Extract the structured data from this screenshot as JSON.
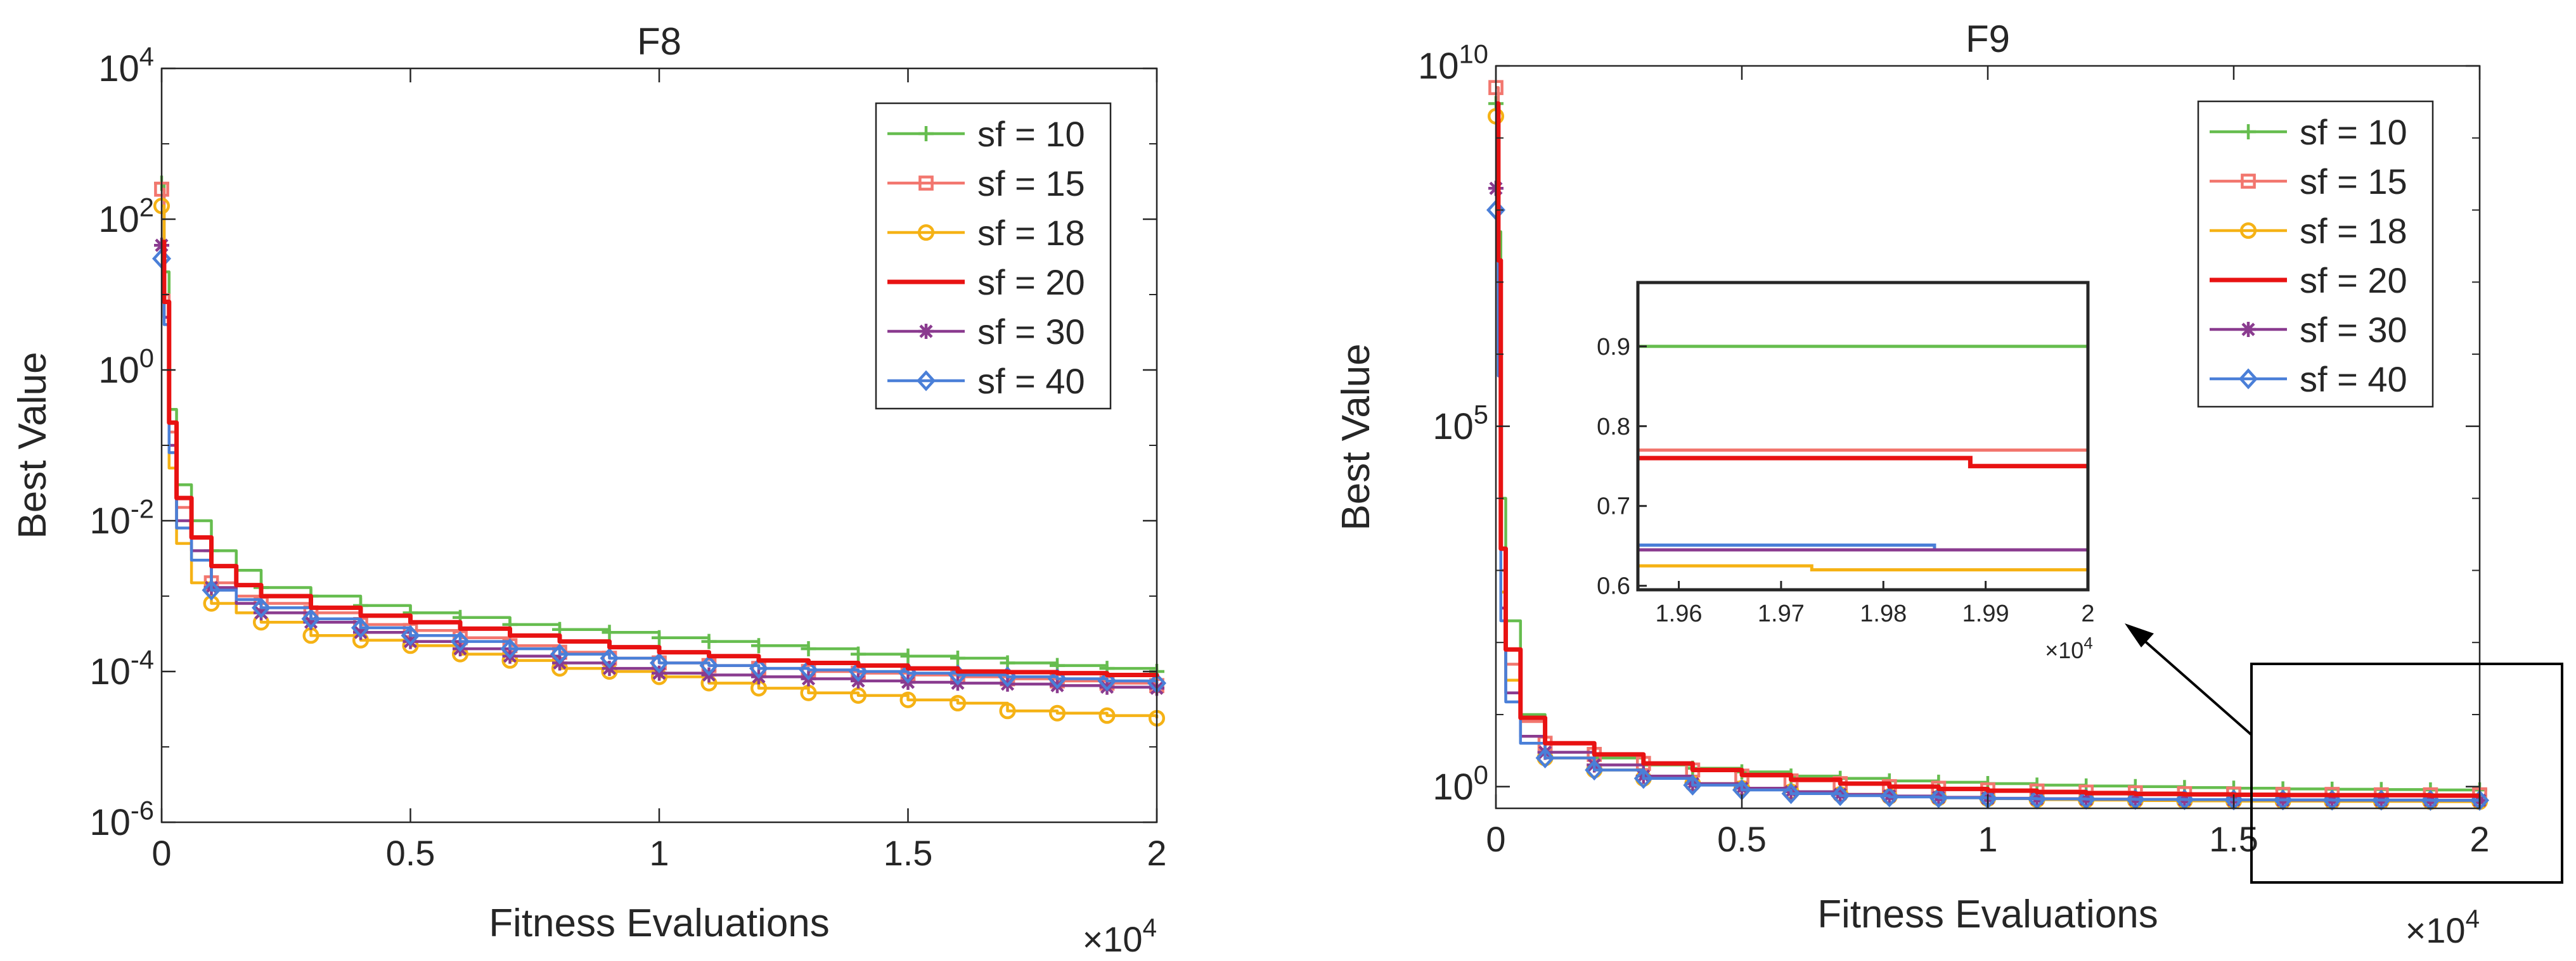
{
  "colors": {
    "sf10": "#66bd4f",
    "sf15": "#f2766e",
    "sf18": "#f5b215",
    "sf20": "#e81212",
    "sf30": "#8a3b8f",
    "sf40": "#4a7fd8",
    "axis": "#262626",
    "arrow": "#000000"
  },
  "chart_data": [
    {
      "id": "F8",
      "type": "line",
      "title": "F8",
      "xlabel": "Fitness Evaluations",
      "ylabel": "Best Value",
      "x_multiplier_label": "×10",
      "x_multiplier_exp": "4",
      "yscale": "log",
      "xlim": [
        0,
        20000
      ],
      "ylim": [
        1e-06,
        10000
      ],
      "xticks": [
        0,
        5000,
        10000,
        15000,
        20000
      ],
      "xtick_labels": [
        "0",
        "0.5",
        "1",
        "1.5",
        "2"
      ],
      "ytick_exps": [
        "-6",
        "-4",
        "-2",
        "0",
        "2",
        "4"
      ],
      "legend_position": "top-right",
      "series": [
        {
          "name": "sf = 10",
          "color_key": "sf10",
          "marker": "plus",
          "x": [
            0,
            50,
            150,
            300,
            600,
            1000,
            1500,
            2000,
            3000,
            4000,
            5000,
            6000,
            7000,
            8000,
            9000,
            10000,
            11000,
            12000,
            13000,
            14000,
            15000,
            16000,
            17000,
            18000,
            19000,
            20000
          ],
          "y": [
            300,
            20,
            0.3,
            0.03,
            0.01,
            0.004,
            0.0022,
            0.0013,
            0.001,
            0.00075,
            0.0006,
            0.00052,
            0.00042,
            0.00036,
            0.00033,
            0.00028,
            0.00025,
            0.00022,
            0.0002,
            0.00017,
            0.00016,
            0.00015,
            0.00013,
            0.00012,
            0.00011,
            0.0001
          ]
        },
        {
          "name": "sf = 15",
          "color_key": "sf15",
          "marker": "square",
          "x": [
            0,
            50,
            150,
            300,
            600,
            1000,
            1500,
            2000,
            3000,
            4000,
            5000,
            6000,
            7000,
            8000,
            9000,
            10000,
            11000,
            12000,
            13000,
            14000,
            15000,
            16000,
            17000,
            18000,
            19000,
            20000
          ],
          "y": [
            250,
            10,
            0.15,
            0.015,
            0.006,
            0.0015,
            0.001,
            0.0008,
            0.0006,
            0.00042,
            0.00035,
            0.00028,
            0.00022,
            0.00018,
            0.00015,
            0.00013,
            0.00012,
            0.00011,
            0.0001,
            9.5e-05,
            9e-05,
            8.5e-05,
            8e-05,
            7.5e-05,
            7e-05,
            6.5e-05
          ]
        },
        {
          "name": "sf = 18",
          "color_key": "sf18",
          "marker": "circle",
          "x": [
            0,
            50,
            150,
            300,
            600,
            1000,
            1500,
            2000,
            3000,
            4000,
            5000,
            6000,
            7000,
            8000,
            9000,
            10000,
            11000,
            12000,
            13000,
            14000,
            15000,
            16000,
            17000,
            18000,
            19000,
            20000
          ],
          "y": [
            150,
            5,
            0.05,
            0.005,
            0.0015,
            0.0008,
            0.0006,
            0.00045,
            0.0003,
            0.00026,
            0.00022,
            0.00017,
            0.00014,
            0.00011,
            0.0001,
            8.5e-05,
            7e-05,
            6e-05,
            5.2e-05,
            4.8e-05,
            4.2e-05,
            3.8e-05,
            3e-05,
            2.8e-05,
            2.6e-05,
            2.4e-05
          ]
        },
        {
          "name": "sf = 20",
          "color_key": "sf20",
          "marker": "none",
          "x": [
            0,
            50,
            150,
            300,
            600,
            1000,
            1500,
            2000,
            3000,
            4000,
            5000,
            6000,
            7000,
            8000,
            9000,
            10000,
            11000,
            12000,
            13000,
            14000,
            15000,
            16000,
            17000,
            18000,
            19000,
            20000
          ],
          "y": [
            50,
            8,
            0.2,
            0.02,
            0.006,
            0.0025,
            0.0014,
            0.001,
            0.0007,
            0.00055,
            0.00045,
            0.00037,
            0.0003,
            0.00025,
            0.00021,
            0.00018,
            0.00016,
            0.00014,
            0.00013,
            0.00012,
            0.00011,
            0.0001,
            9.8e-05,
            9.5e-05,
            9e-05,
            8.5e-05
          ]
        },
        {
          "name": "sf = 30",
          "color_key": "sf30",
          "marker": "asterisk",
          "x": [
            0,
            50,
            150,
            300,
            600,
            1000,
            1500,
            2000,
            3000,
            4000,
            5000,
            6000,
            7000,
            8000,
            9000,
            10000,
            11000,
            12000,
            13000,
            14000,
            15000,
            16000,
            17000,
            18000,
            19000,
            20000
          ],
          "y": [
            45,
            5,
            0.1,
            0.01,
            0.004,
            0.0013,
            0.0008,
            0.0006,
            0.00045,
            0.00033,
            0.00025,
            0.0002,
            0.00016,
            0.00013,
            0.00011,
            9.5e-05,
            9e-05,
            8.5e-05,
            8e-05,
            7.5e-05,
            7.2e-05,
            7e-05,
            6.8e-05,
            6.5e-05,
            6.2e-05,
            6e-05
          ]
        },
        {
          "name": "sf = 40",
          "color_key": "sf40",
          "marker": "diamond",
          "x": [
            0,
            50,
            150,
            300,
            600,
            1000,
            1500,
            2000,
            3000,
            4000,
            5000,
            6000,
            7000,
            8000,
            9000,
            10000,
            11000,
            12000,
            13000,
            14000,
            15000,
            16000,
            17000,
            18000,
            19000,
            20000
          ],
          "y": [
            30,
            4,
            0.08,
            0.008,
            0.003,
            0.0012,
            0.0009,
            0.0007,
            0.0005,
            0.00038,
            0.0003,
            0.00025,
            0.0002,
            0.00017,
            0.00015,
            0.00013,
            0.00012,
            0.00011,
            0.000105,
            0.0001,
            9.5e-05,
            9e-05,
            8.5e-05,
            8e-05,
            7.5e-05,
            7e-05
          ]
        }
      ]
    },
    {
      "id": "F9",
      "type": "line",
      "title": "F9",
      "xlabel": "Fitness Evaluations",
      "ylabel": "Best Value",
      "x_multiplier_label": "×10",
      "x_multiplier_exp": "4",
      "yscale": "log",
      "xlim": [
        0,
        20000
      ],
      "ylim": [
        0.5,
        10000000000.0
      ],
      "xticks": [
        0,
        5000,
        10000,
        15000,
        20000
      ],
      "xtick_labels": [
        "0",
        "0.5",
        "1",
        "1.5",
        "2"
      ],
      "ytick_exps": [
        "0",
        "5",
        "10"
      ],
      "legend_position": "top-right",
      "series": [
        {
          "name": "sf = 10",
          "color_key": "sf10",
          "marker": "plus",
          "x": [
            0,
            50,
            100,
            200,
            500,
            1000,
            2000,
            3000,
            4000,
            5000,
            6000,
            7000,
            8000,
            9000,
            10000,
            11000,
            12000,
            13000,
            14000,
            15000,
            16000,
            17000,
            18000,
            19000,
            20000
          ],
          "y": [
            3000000000,
            50000000,
            10000,
            200,
            10,
            4,
            2.5,
            2,
            1.8,
            1.6,
            1.4,
            1.3,
            1.2,
            1.15,
            1.1,
            1.05,
            1.02,
            1,
            0.97,
            0.95,
            0.93,
            0.92,
            0.91,
            0.9,
            0.9
          ]
        },
        {
          "name": "sf = 15",
          "color_key": "sf15",
          "marker": "square",
          "x": [
            0,
            50,
            100,
            200,
            500,
            1000,
            2000,
            3000,
            4000,
            5000,
            6000,
            7000,
            8000,
            9000,
            10000,
            11000,
            12000,
            13000,
            14000,
            15000,
            16000,
            17000,
            18000,
            19000,
            20000
          ],
          "y": [
            5000000000,
            10000000,
            1000,
            50,
            8,
            4,
            2.8,
            2.1,
            1.7,
            1.4,
            1.2,
            1.1,
            1,
            0.95,
            0.9,
            0.87,
            0.84,
            0.82,
            0.8,
            0.79,
            0.78,
            0.78,
            0.77,
            0.77,
            0.77
          ]
        },
        {
          "name": "sf = 18",
          "color_key": "sf18",
          "marker": "circle",
          "x": [
            0,
            50,
            100,
            200,
            500,
            1000,
            2000,
            3000,
            4000,
            5000,
            6000,
            7000,
            8000,
            9000,
            10000,
            11000,
            12000,
            13000,
            14000,
            15000,
            16000,
            17000,
            18000,
            19000,
            20000
          ],
          "y": [
            2000000000,
            5000000,
            500,
            30,
            5,
            2.5,
            1.7,
            1.3,
            1.1,
            0.95,
            0.85,
            0.78,
            0.73,
            0.7,
            0.68,
            0.66,
            0.65,
            0.64,
            0.635,
            0.63,
            0.63,
            0.625,
            0.625,
            0.62,
            0.62
          ]
        },
        {
          "name": "sf = 20",
          "color_key": "sf20",
          "marker": "none",
          "x": [
            0,
            50,
            100,
            200,
            500,
            1000,
            2000,
            3000,
            4000,
            5000,
            6000,
            7000,
            8000,
            9000,
            10000,
            11000,
            12000,
            13000,
            14000,
            15000,
            16000,
            17000,
            18000,
            19000,
            20000
          ],
          "y": [
            3000000000,
            20000000,
            2000,
            80,
            9,
            4,
            2.8,
            2.1,
            1.7,
            1.45,
            1.25,
            1.1,
            1,
            0.93,
            0.88,
            0.84,
            0.81,
            0.79,
            0.78,
            0.77,
            0.765,
            0.76,
            0.76,
            0.75,
            0.75
          ]
        },
        {
          "name": "sf = 30",
          "color_key": "sf30",
          "marker": "asterisk",
          "x": [
            0,
            50,
            100,
            200,
            500,
            1000,
            2000,
            3000,
            4000,
            5000,
            6000,
            7000,
            8000,
            9000,
            10000,
            11000,
            12000,
            13000,
            14000,
            15000,
            16000,
            17000,
            18000,
            19000,
            20000
          ],
          "y": [
            200000000,
            1000000,
            300,
            20,
            5,
            3,
            2,
            1.4,
            1.1,
            0.95,
            0.85,
            0.78,
            0.74,
            0.71,
            0.69,
            0.68,
            0.67,
            0.665,
            0.66,
            0.655,
            0.65,
            0.65,
            0.65,
            0.645,
            0.645
          ]
        },
        {
          "name": "sf = 40",
          "color_key": "sf40",
          "marker": "diamond",
          "x": [
            0,
            50,
            100,
            200,
            500,
            1000,
            2000,
            3000,
            4000,
            5000,
            6000,
            7000,
            8000,
            9000,
            10000,
            11000,
            12000,
            13000,
            14000,
            15000,
            16000,
            17000,
            18000,
            19000,
            20000
          ],
          "y": [
            100000000,
            500000,
            200,
            15,
            4,
            2.5,
            1.7,
            1.3,
            1.05,
            0.9,
            0.8,
            0.75,
            0.72,
            0.7,
            0.685,
            0.675,
            0.67,
            0.665,
            0.66,
            0.655,
            0.655,
            0.65,
            0.65,
            0.645,
            0.645
          ]
        }
      ],
      "inset": {
        "xlim": [
          19560,
          20000
        ],
        "ylim": [
          0.595,
          0.98
        ],
        "xticks": [
          19600,
          19700,
          19800,
          19900,
          20000
        ],
        "xtick_labels": [
          "1.96",
          "1.97",
          "1.98",
          "1.99",
          "2"
        ],
        "yticks": [
          0.6,
          0.7,
          0.8,
          0.9
        ],
        "ytick_labels": [
          "0.6",
          "0.7",
          "0.8",
          "0.9"
        ],
        "x_multiplier_label": "×10",
        "x_multiplier_exp": "4",
        "series": [
          {
            "name": "sf = 10",
            "color_key": "sf10",
            "x": [
              19560,
              20000
            ],
            "y": [
              0.9,
              0.9
            ]
          },
          {
            "name": "sf = 15",
            "color_key": "sf15",
            "x": [
              19560,
              20000
            ],
            "y": [
              0.77,
              0.77
            ]
          },
          {
            "name": "sf = 20",
            "color_key": "sf20",
            "x": [
              19560,
              19885,
              19885,
              20000
            ],
            "y": [
              0.76,
              0.76,
              0.75,
              0.75
            ]
          },
          {
            "name": "sf = 40",
            "color_key": "sf40",
            "x": [
              19560,
              19850,
              19850,
              20000
            ],
            "y": [
              0.651,
              0.651,
              0.645,
              0.645
            ]
          },
          {
            "name": "sf = 30",
            "color_key": "sf30",
            "x": [
              19560,
              20000
            ],
            "y": [
              0.645,
              0.645
            ]
          },
          {
            "name": "sf = 18",
            "color_key": "sf18",
            "x": [
              19560,
              19730,
              19730,
              20000
            ],
            "y": [
              0.625,
              0.625,
              0.62,
              0.62
            ]
          }
        ]
      }
    }
  ]
}
